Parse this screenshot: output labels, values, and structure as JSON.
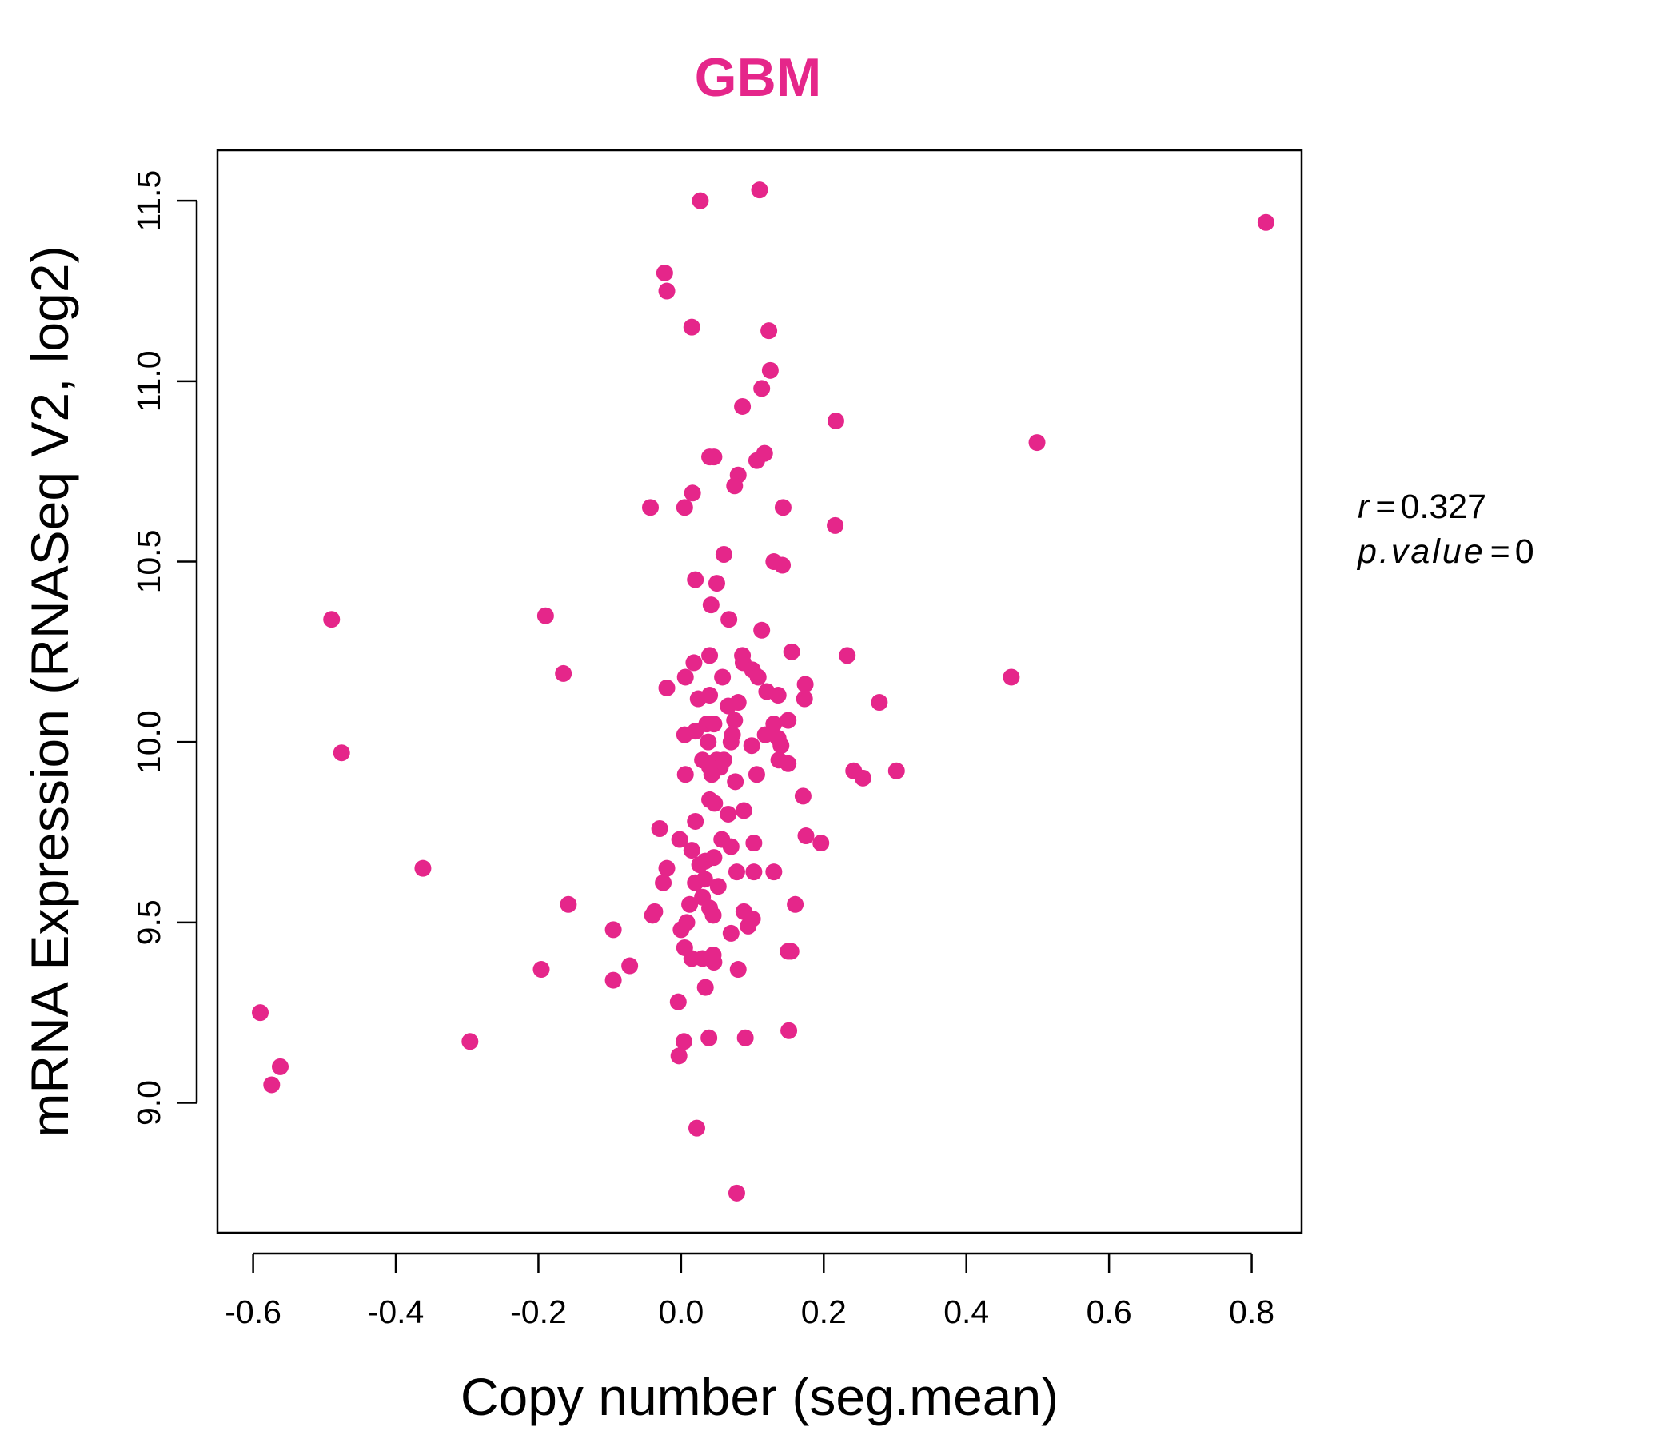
{
  "chart_data": {
    "type": "scatter",
    "title": "GBM",
    "title_color": "#e5268a",
    "point_color": "#e5268a",
    "xlabel": "Copy number (seg.mean)",
    "ylabel": "mRNA Expression (RNASeq V2, log2)",
    "xlim": [
      -0.65,
      0.87
    ],
    "ylim": [
      8.64,
      11.64
    ],
    "x_ticks": [
      "-0.6",
      "-0.4",
      "-0.2",
      "0.0",
      "0.2",
      "0.4",
      "0.6",
      "0.8"
    ],
    "y_ticks": [
      "9.0",
      "9.5",
      "10.0",
      "10.5",
      "11.0",
      "11.5"
    ],
    "grid": false,
    "annotation": {
      "r_label": "r",
      "r_value": "0.327",
      "p_label": "p.value",
      "p_value": "0"
    },
    "points": [
      [
        0.11,
        11.53
      ],
      [
        0.027,
        11.5
      ],
      [
        0.82,
        11.44
      ],
      [
        -0.023,
        11.3
      ],
      [
        -0.02,
        11.25
      ],
      [
        0.015,
        11.15
      ],
      [
        0.123,
        11.14
      ],
      [
        0.125,
        11.03
      ],
      [
        0.113,
        10.98
      ],
      [
        0.086,
        10.93
      ],
      [
        0.217,
        10.89
      ],
      [
        0.499,
        10.83
      ],
      [
        0.117,
        10.8
      ],
      [
        0.106,
        10.78
      ],
      [
        0.04,
        10.79
      ],
      [
        0.046,
        10.79
      ],
      [
        0.08,
        10.74
      ],
      [
        0.075,
        10.71
      ],
      [
        0.016,
        10.69
      ],
      [
        -0.043,
        10.65
      ],
      [
        0.005,
        10.65
      ],
      [
        0.143,
        10.65
      ],
      [
        0.216,
        10.6
      ],
      [
        0.06,
        10.52
      ],
      [
        0.13,
        10.5
      ],
      [
        0.142,
        10.49
      ],
      [
        0.02,
        10.45
      ],
      [
        0.05,
        10.44
      ],
      [
        0.042,
        10.38
      ],
      [
        0.067,
        10.34
      ],
      [
        -0.49,
        10.34
      ],
      [
        -0.19,
        10.35
      ],
      [
        0.113,
        10.31
      ],
      [
        0.04,
        10.24
      ],
      [
        0.155,
        10.25
      ],
      [
        0.233,
        10.24
      ],
      [
        0.086,
        10.24
      ],
      [
        0.087,
        10.22
      ],
      [
        0.018,
        10.22
      ],
      [
        0.1,
        10.2
      ],
      [
        -0.165,
        10.19
      ],
      [
        0.006,
        10.18
      ],
      [
        0.058,
        10.18
      ],
      [
        0.108,
        10.18
      ],
      [
        0.463,
        10.18
      ],
      [
        0.174,
        10.16
      ],
      [
        -0.02,
        10.15
      ],
      [
        0.12,
        10.14
      ],
      [
        0.136,
        10.13
      ],
      [
        0.04,
        10.13
      ],
      [
        0.024,
        10.12
      ],
      [
        0.08,
        10.11
      ],
      [
        0.173,
        10.12
      ],
      [
        0.066,
        10.1
      ],
      [
        0.278,
        10.11
      ],
      [
        0.075,
        10.06
      ],
      [
        0.13,
        10.05
      ],
      [
        0.15,
        10.06
      ],
      [
        0.036,
        10.05
      ],
      [
        0.046,
        10.05
      ],
      [
        0.02,
        10.03
      ],
      [
        0.072,
        10.02
      ],
      [
        0.005,
        10.02
      ],
      [
        0.118,
        10.02
      ],
      [
        0.136,
        10.01
      ],
      [
        0.07,
        10.0
      ],
      [
        0.038,
        10.0
      ],
      [
        0.099,
        9.99
      ],
      [
        0.14,
        9.99
      ],
      [
        -0.476,
        9.97
      ],
      [
        0.03,
        9.95
      ],
      [
        0.05,
        9.95
      ],
      [
        0.06,
        9.95
      ],
      [
        0.04,
        9.93
      ],
      [
        0.055,
        9.93
      ],
      [
        0.137,
        9.95
      ],
      [
        0.15,
        9.94
      ],
      [
        0.242,
        9.92
      ],
      [
        0.302,
        9.92
      ],
      [
        0.255,
        9.9
      ],
      [
        0.006,
        9.91
      ],
      [
        0.043,
        9.91
      ],
      [
        0.106,
        9.91
      ],
      [
        0.076,
        9.89
      ],
      [
        0.171,
        9.85
      ],
      [
        0.04,
        9.84
      ],
      [
        0.047,
        9.83
      ],
      [
        0.088,
        9.81
      ],
      [
        0.066,
        9.8
      ],
      [
        0.02,
        9.78
      ],
      [
        -0.03,
        9.76
      ],
      [
        -0.002,
        9.73
      ],
      [
        0.175,
        9.74
      ],
      [
        0.057,
        9.73
      ],
      [
        0.102,
        9.72
      ],
      [
        0.196,
        9.72
      ],
      [
        0.07,
        9.71
      ],
      [
        0.015,
        9.7
      ],
      [
        0.034,
        9.67
      ],
      [
        0.026,
        9.66
      ],
      [
        0.046,
        9.68
      ],
      [
        -0.362,
        9.65
      ],
      [
        -0.02,
        9.65
      ],
      [
        0.078,
        9.64
      ],
      [
        0.102,
        9.64
      ],
      [
        0.13,
        9.64
      ],
      [
        0.033,
        9.62
      ],
      [
        -0.025,
        9.61
      ],
      [
        0.02,
        9.61
      ],
      [
        0.052,
        9.6
      ],
      [
        0.03,
        9.57
      ],
      [
        0.012,
        9.55
      ],
      [
        0.04,
        9.54
      ],
      [
        -0.158,
        9.55
      ],
      [
        0.16,
        9.55
      ],
      [
        -0.037,
        9.53
      ],
      [
        -0.04,
        9.52
      ],
      [
        0.088,
        9.53
      ],
      [
        0.045,
        9.52
      ],
      [
        0.008,
        9.5
      ],
      [
        0.1,
        9.51
      ],
      [
        -0.095,
        9.48
      ],
      [
        0.094,
        9.49
      ],
      [
        0.0,
        9.48
      ],
      [
        0.07,
        9.47
      ],
      [
        0.005,
        9.43
      ],
      [
        0.154,
        9.42
      ],
      [
        0.15,
        9.42
      ],
      [
        0.015,
        9.4
      ],
      [
        0.03,
        9.4
      ],
      [
        0.045,
        9.41
      ],
      [
        0.046,
        9.39
      ],
      [
        -0.072,
        9.38
      ],
      [
        -0.196,
        9.37
      ],
      [
        0.08,
        9.37
      ],
      [
        -0.095,
        9.34
      ],
      [
        0.034,
        9.32
      ],
      [
        -0.004,
        9.28
      ],
      [
        -0.59,
        9.25
      ],
      [
        0.151,
        9.2
      ],
      [
        0.039,
        9.18
      ],
      [
        0.004,
        9.17
      ],
      [
        0.09,
        9.18
      ],
      [
        -0.296,
        9.17
      ],
      [
        -0.562,
        9.1
      ],
      [
        -0.003,
        9.13
      ],
      [
        -0.574,
        9.05
      ],
      [
        0.022,
        8.93
      ],
      [
        0.078,
        8.75
      ]
    ]
  }
}
